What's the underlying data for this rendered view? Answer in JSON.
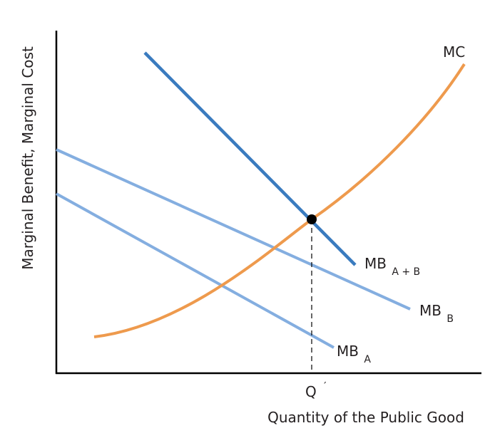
{
  "diagram": {
    "ylabel": "Marginal Benefit, Marginal Cost",
    "xlabel": "Quantity of the Public Good",
    "x_tick": {
      "main": "Q",
      "prime": "′"
    },
    "curves": {
      "mc": {
        "label": "MC",
        "color": "#ee9a4d"
      },
      "mb_sum": {
        "label_main": "MB",
        "label_sub": "A + B",
        "color": "#3a7bbf"
      },
      "mb_b": {
        "label_main": "MB",
        "label_sub": "B",
        "color": "#84aee0"
      },
      "mb_a": {
        "label_main": "MB",
        "label_sub": "A",
        "color": "#84aee0"
      }
    },
    "axis_color": "#000000",
    "equilibrium_point_color": "#000000"
  }
}
